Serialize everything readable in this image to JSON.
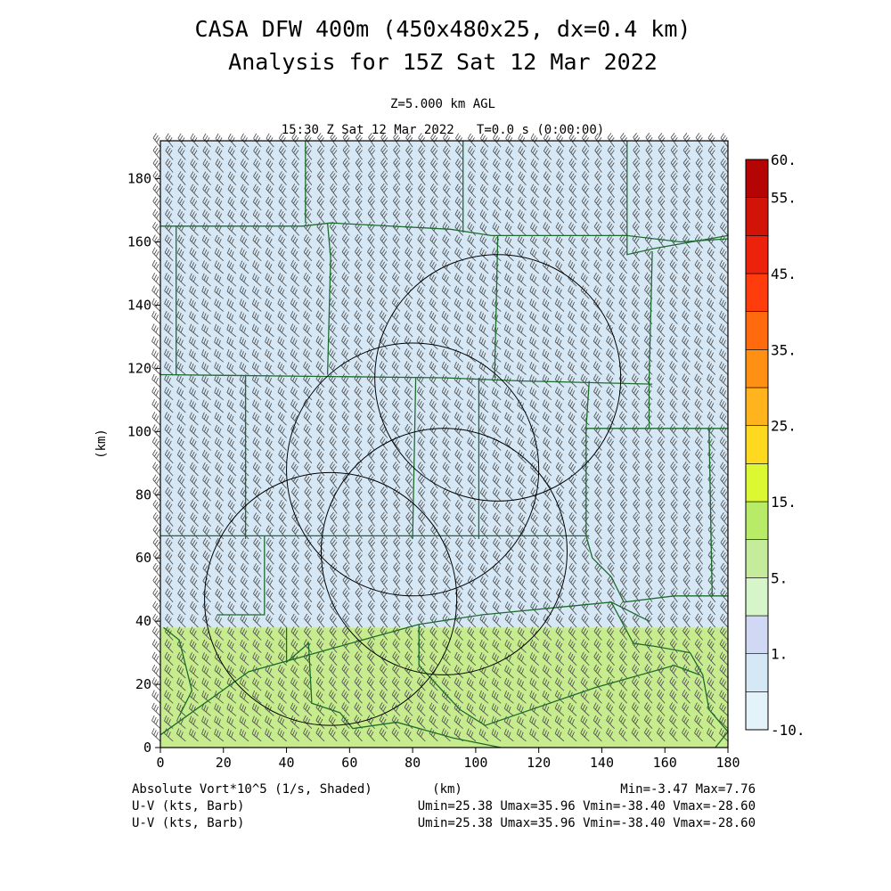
{
  "chart_data": {
    "type": "heatmap",
    "title": "CASA DFW 400m (450x480x25, dx=0.4 km)",
    "subtitle": "Analysis for 15Z Sat 12 Mar 2022",
    "level_label": "Z=5.000 km AGL",
    "time_label": "15:30 Z Sat 12 Mar 2022   T=0.0 s (0:00:00)",
    "xlabel": "(km)",
    "ylabel": "(km)",
    "xlim": [
      0,
      180
    ],
    "ylim": [
      0,
      192
    ],
    "x_ticks": [
      "0",
      "20",
      "40",
      "60",
      "80",
      "100",
      "120",
      "140",
      "160",
      "180"
    ],
    "y_ticks": [
      "0",
      "20",
      "40",
      "60",
      "80",
      "100",
      "120",
      "140",
      "160",
      "180"
    ],
    "field": "Absolute Vort*10^5 (1/s, Shaded)",
    "field_min": "Min=-3.47",
    "field_max": "Max=7.76",
    "shading_regions": [
      {
        "label": "lower band",
        "y_range": [
          0,
          38
        ],
        "color": "#c7ec8e"
      },
      {
        "label": "main field",
        "y_range": [
          38,
          192
        ],
        "color": "#d6e8f6"
      }
    ],
    "colorbar": {
      "bounds": [
        -10,
        0,
        1,
        2,
        5,
        10,
        15,
        20,
        25,
        30,
        35,
        40,
        45,
        50,
        55,
        60
      ],
      "colors": [
        "#e4f3fa",
        "#d4e8f6",
        "#d0d8f4",
        "#d6f5c8",
        "#c4ec9a",
        "#b8ec68",
        "#dcf832",
        "#ffd820",
        "#ffb41e",
        "#ff9014",
        "#ff6a0c",
        "#ff3c0c",
        "#ec220c",
        "#d21408",
        "#b40404"
      ],
      "labels": [
        {
          "value": -10,
          "text": "-10."
        },
        {
          "value": 1,
          "text": "1."
        },
        {
          "value": 5,
          "text": "5."
        },
        {
          "value": 15,
          "text": "15."
        },
        {
          "value": 25,
          "text": "25."
        },
        {
          "value": 35,
          "text": "35."
        },
        {
          "value": 45,
          "text": "45."
        },
        {
          "value": 55,
          "text": "55."
        },
        {
          "value": 60,
          "text": "60."
        }
      ]
    },
    "barbs": {
      "label": "U-V (kts, Barb)",
      "range_text": "Umin=25.38 Umax=35.96 Vmin=-38.40 Vmax=-28.60",
      "u_range": [
        25.38,
        35.96
      ],
      "v_range": [
        -38.4,
        -28.6
      ],
      "spacing_km": 4
    },
    "radar_rings": [
      {
        "center": [
          107,
          117
        ],
        "radius_km": 39
      },
      {
        "center": [
          80,
          88
        ],
        "radius_km": 40
      },
      {
        "center": [
          90,
          62
        ],
        "radius_km": 39
      },
      {
        "center": [
          54,
          47
        ],
        "radius_km": 40
      }
    ],
    "county_lines": [
      [
        [
          0,
          165
        ],
        [
          45,
          165
        ],
        [
          54,
          166
        ],
        [
          92,
          164
        ],
        [
          105,
          162
        ],
        [
          148,
          162
        ],
        [
          165,
          160
        ],
        [
          180,
          161
        ]
      ],
      [
        [
          46,
          192
        ],
        [
          46,
          166
        ]
      ],
      [
        [
          96,
          192
        ],
        [
          96,
          163
        ]
      ],
      [
        [
          148,
          192
        ],
        [
          148,
          156
        ],
        [
          157,
          158
        ],
        [
          180,
          162
        ]
      ],
      [
        [
          0,
          118
        ],
        [
          90,
          117
        ],
        [
          115,
          116
        ],
        [
          156,
          115
        ]
      ],
      [
        [
          5,
          165
        ],
        [
          5,
          118
        ]
      ],
      [
        [
          53,
          166
        ],
        [
          54,
          155
        ],
        [
          53,
          118
        ]
      ],
      [
        [
          107,
          162
        ],
        [
          106,
          117
        ]
      ],
      [
        [
          156,
          157
        ],
        [
          155,
          116
        ],
        [
          155,
          101
        ],
        [
          180,
          101
        ]
      ],
      [
        [
          27,
          118
        ],
        [
          27,
          66
        ]
      ],
      [
        [
          81,
          117
        ],
        [
          80,
          66
        ]
      ],
      [
        [
          101,
          117
        ],
        [
          101,
          66
        ]
      ],
      [
        [
          136,
          116
        ],
        [
          135,
          101
        ],
        [
          155,
          101
        ]
      ],
      [
        [
          0,
          67
        ],
        [
          57,
          67
        ],
        [
          136,
          67
        ]
      ],
      [
        [
          135,
          101
        ],
        [
          135,
          67
        ],
        [
          137,
          60
        ],
        [
          143,
          54
        ],
        [
          147,
          46
        ],
        [
          163,
          48
        ],
        [
          180,
          48
        ]
      ],
      [
        [
          174,
          101
        ],
        [
          175,
          48
        ]
      ],
      [
        [
          33,
          67
        ],
        [
          33,
          42
        ],
        [
          18,
          42
        ]
      ],
      [
        [
          0,
          4
        ],
        [
          28,
          24
        ],
        [
          64,
          34
        ],
        [
          82,
          39
        ],
        [
          102,
          42
        ],
        [
          143,
          46
        ],
        [
          155,
          40
        ]
      ],
      [
        [
          82,
          39
        ],
        [
          82,
          26
        ],
        [
          95,
          12
        ],
        [
          103,
          7
        ],
        [
          138,
          19
        ],
        [
          163,
          26
        ],
        [
          171,
          23
        ]
      ],
      [
        [
          1,
          38
        ],
        [
          6,
          34
        ],
        [
          10,
          18
        ],
        [
          6,
          10
        ]
      ],
      [
        [
          40,
          38
        ],
        [
          40,
          27
        ],
        [
          47,
          33
        ],
        [
          48,
          14
        ],
        [
          57,
          11
        ],
        [
          61,
          6
        ],
        [
          75,
          8
        ],
        [
          93,
          3
        ],
        [
          108,
          0
        ]
      ],
      [
        [
          143,
          46
        ],
        [
          150,
          33
        ],
        [
          157,
          32
        ],
        [
          168,
          30
        ],
        [
          172,
          23
        ],
        [
          174,
          12
        ],
        [
          180,
          5
        ],
        [
          176,
          0
        ]
      ]
    ]
  },
  "footer": {
    "field_label": "Absolute Vort*10^5 (1/s, Shaded)",
    "xaxis_label": "(km)",
    "minmax": "Min=-3.47 Max=7.76",
    "barb_label_1": "U-V (kts, Barb)",
    "barb_range_1": "Umin=25.38 Umax=35.96 Vmin=-38.40 Vmax=-28.60",
    "barb_label_2": "U-V (kts, Barb)",
    "barb_range_2": "Umin=25.38 Umax=35.96 Vmin=-38.40 Vmax=-28.60"
  }
}
